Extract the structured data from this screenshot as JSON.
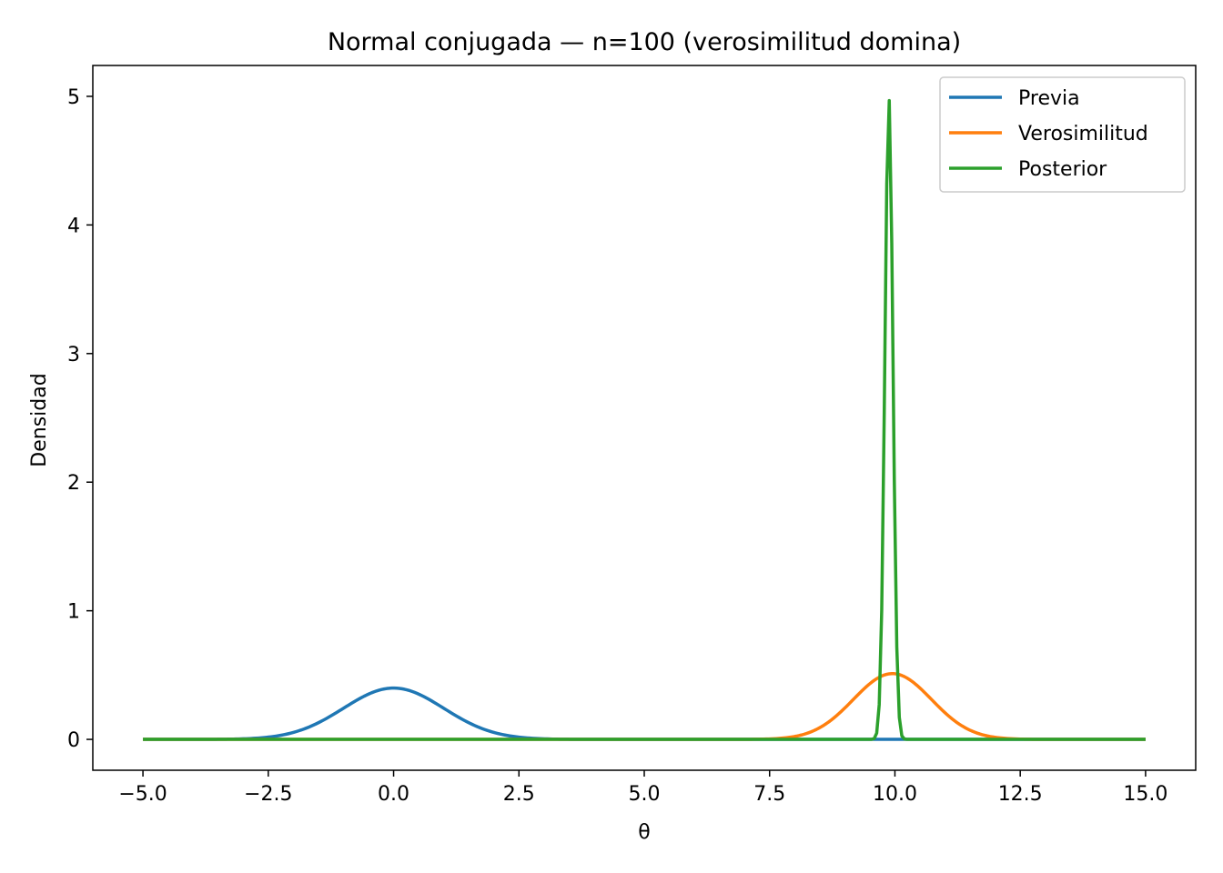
{
  "chart_data": {
    "type": "line",
    "title": "Normal conjugada — n=100 (verosimilitud domina)",
    "xlabel": "θ",
    "ylabel": "Densidad",
    "xlim": [
      -6.0,
      16.0
    ],
    "ylim": [
      -0.24,
      5.24
    ],
    "x_range": [
      -5,
      15
    ],
    "n_points": 400,
    "xticks": [
      -5.0,
      -2.5,
      0.0,
      2.5,
      5.0,
      7.5,
      10.0,
      12.5,
      15.0
    ],
    "xtick_labels": [
      "−5.0",
      "−2.5",
      "0.0",
      "2.5",
      "5.0",
      "7.5",
      "10.0",
      "12.5",
      "15.0"
    ],
    "yticks": [
      0,
      1,
      2,
      3,
      4,
      5
    ],
    "ytick_labels": [
      "0",
      "1",
      "2",
      "3",
      "4",
      "5"
    ],
    "grid": false,
    "legend_position": "top-right",
    "series": [
      {
        "name": "Previa",
        "color": "#1f77b4",
        "distribution": "normal",
        "mean": 0.0,
        "sd": 1.0,
        "peak": 0.399
      },
      {
        "name": "Verosimilitud",
        "color": "#ff7f0e",
        "distribution": "normal",
        "mean": 9.95,
        "sd": 0.78,
        "peak": 0.51
      },
      {
        "name": "Posterior",
        "color": "#2ca02c",
        "distribution": "normal",
        "mean": 9.88,
        "sd": 0.08,
        "peak": 4.98
      }
    ]
  }
}
